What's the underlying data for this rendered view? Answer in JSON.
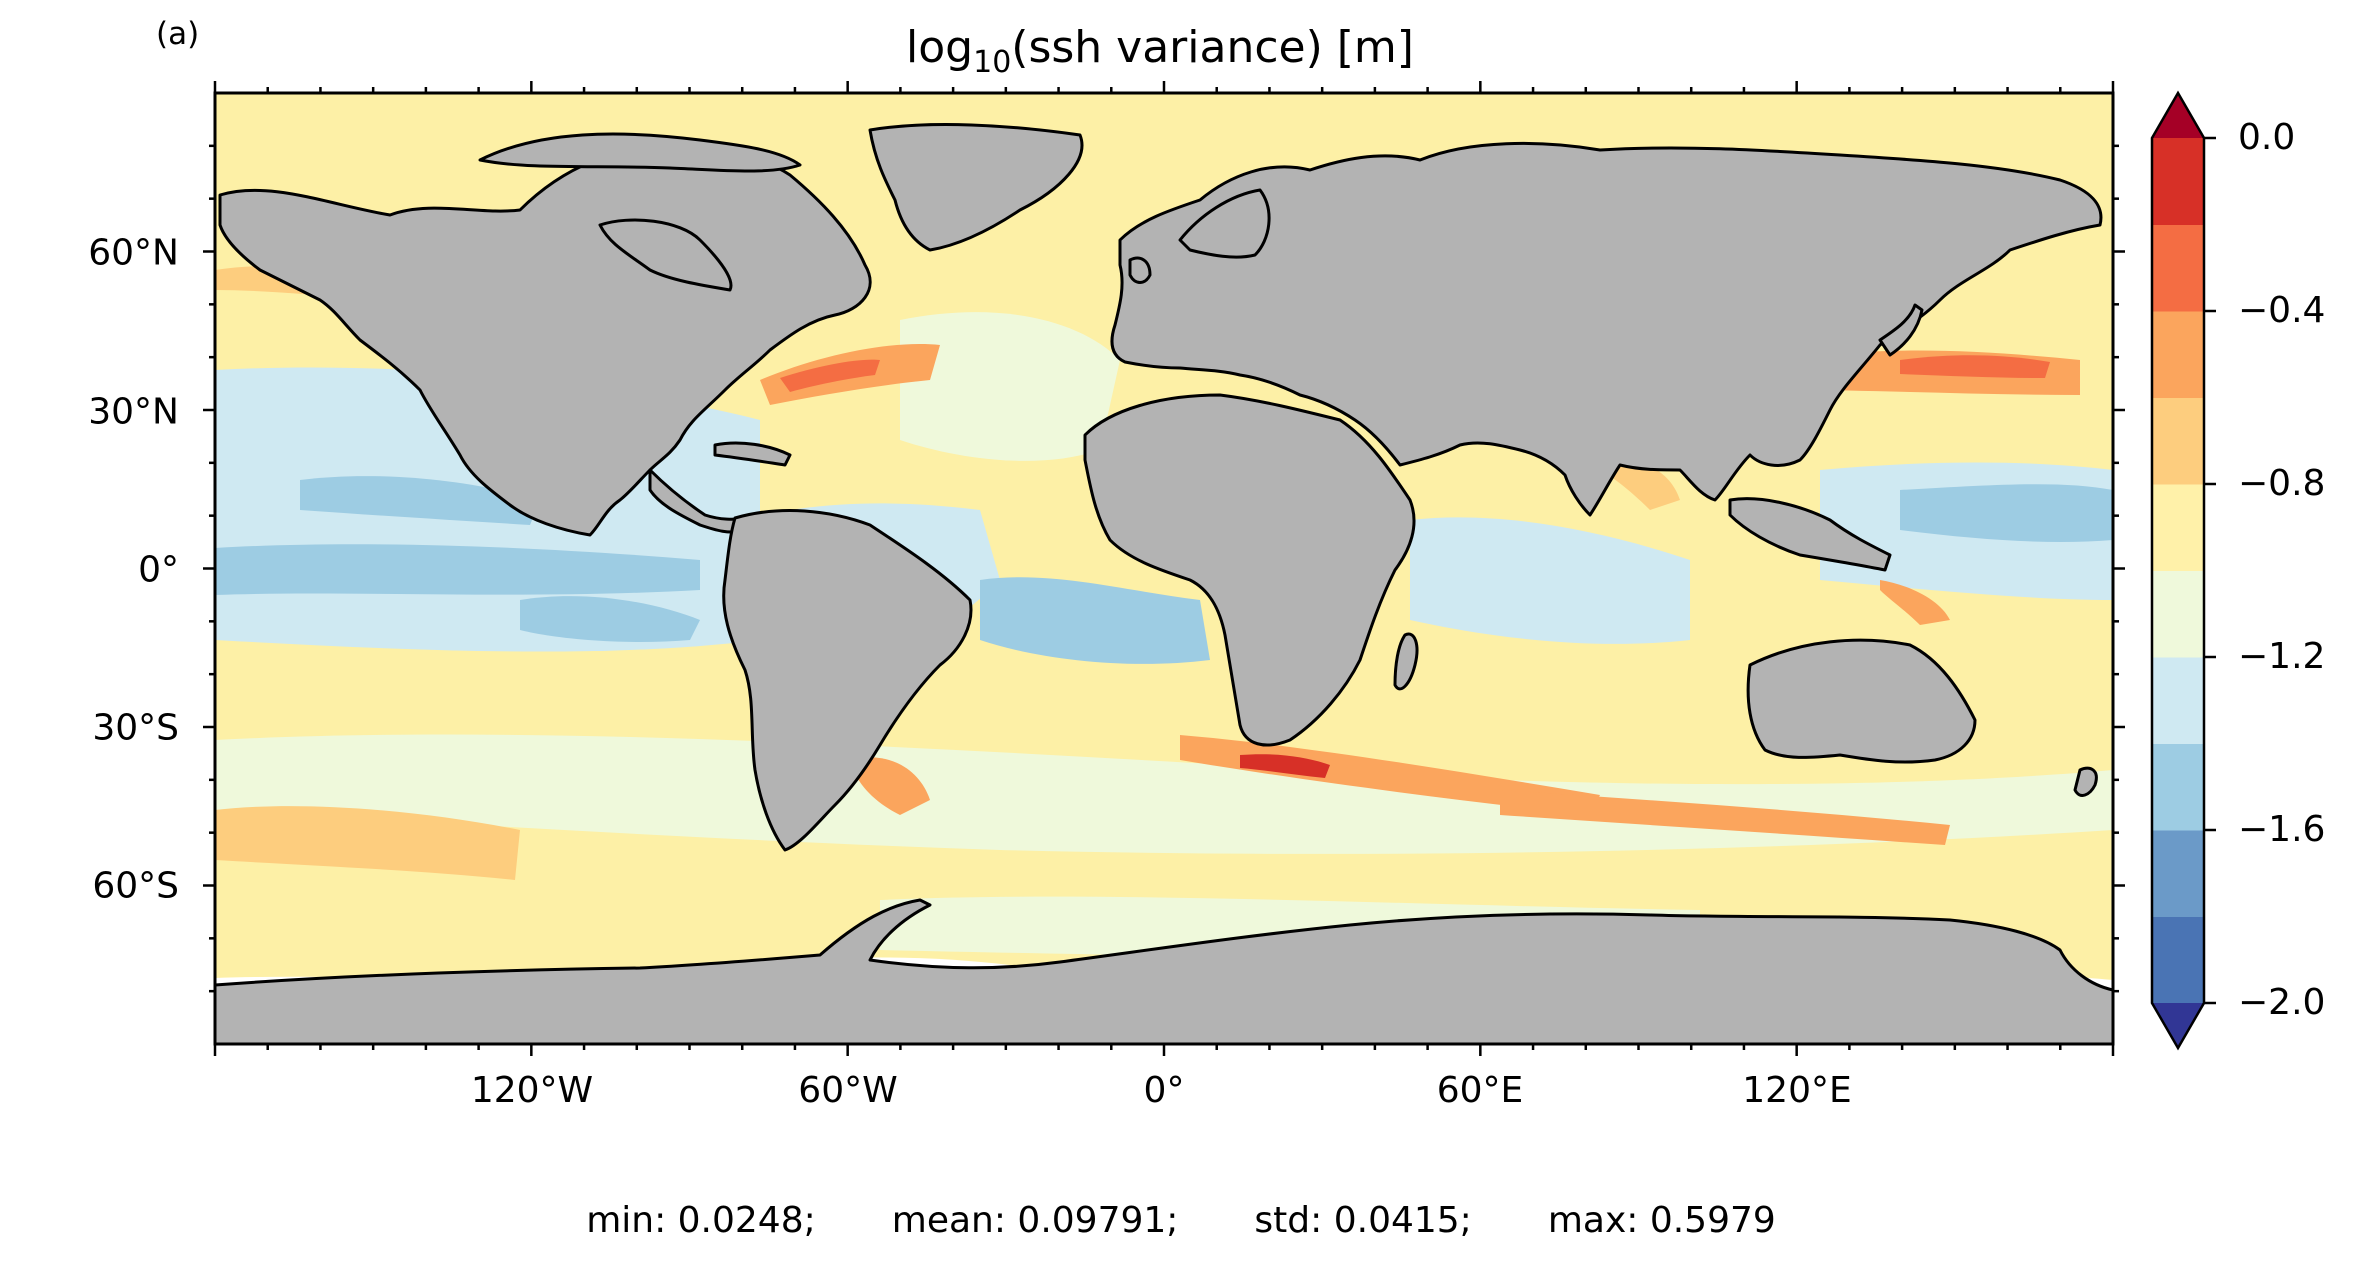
{
  "panel_label": "(a)",
  "title": {
    "prefix": "log",
    "subscript": "10",
    "suffix": "(ssh variance) [m]"
  },
  "colors": {
    "land": "#b3b3b3",
    "coast": "#000000",
    "ocean_base": "#fdf0a6"
  },
  "chart_data": {
    "type": "heatmap",
    "projection": "plate-carree",
    "lon_range": [
      -180,
      180
    ],
    "lat_range": [
      -90,
      90
    ],
    "lat_ticks": [
      "60°N",
      "30°N",
      "0°",
      "30°S",
      "60°S"
    ],
    "lon_ticks": [
      "120°W",
      "60°W",
      "0°",
      "60°E",
      "120°E"
    ],
    "colorbar": {
      "extend": "both",
      "ticks": [
        "0.0",
        "−0.4",
        "−0.8",
        "−1.2",
        "−1.6",
        "−2.0"
      ],
      "levels": [
        -2.0,
        -1.8,
        -1.6,
        -1.4,
        -1.2,
        -1.0,
        -0.8,
        -0.6,
        -0.4,
        -0.2,
        0.0
      ],
      "colors": [
        "#4a74b4",
        "#6b9ac8",
        "#9dcce3",
        "#cfe9f2",
        "#eff9db",
        "#fff1a9",
        "#fdcd7e",
        "#fba55d",
        "#f46d43",
        "#d73027"
      ],
      "under_color": "#313695",
      "over_color": "#a50026"
    }
  },
  "stats": {
    "min": "min: 0.0248;",
    "mean": "mean: 0.09791;",
    "std": "std: 0.0415;",
    "max": "max: 0.5979"
  }
}
